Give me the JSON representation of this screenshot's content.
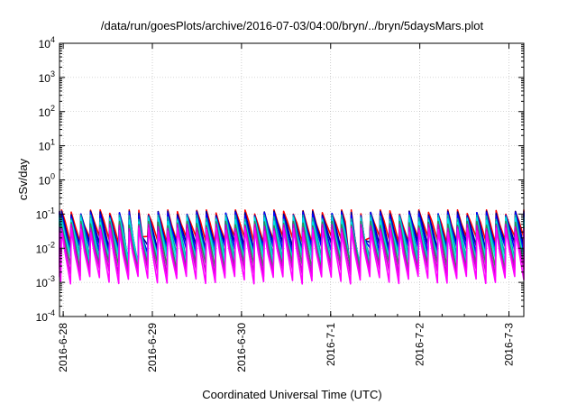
{
  "chart_data": {
    "type": "line",
    "title": "/data/run/goesPlots/archive/2016-07-03/04:00/bryn/../bryn/5daysMars.plot",
    "xlabel": "Coordinated Universal Time (UTC)",
    "ylabel": "cSv/day",
    "yscale": "log",
    "ylim": [
      0.0001,
      10000
    ],
    "xlim": [
      "2016-06-27 23:00",
      "2016-07-03 04:00"
    ],
    "grid": true,
    "legend": "none",
    "y_ticks": [
      {
        "base": "10",
        "exp": "-4",
        "value": 0.0001
      },
      {
        "base": "10",
        "exp": "-3",
        "value": 0.001
      },
      {
        "base": "10",
        "exp": "-2",
        "value": 0.01
      },
      {
        "base": "10",
        "exp": "-1",
        "value": 0.1
      },
      {
        "base": "10",
        "exp": "0",
        "value": 1
      },
      {
        "base": "10",
        "exp": "1",
        "value": 10
      },
      {
        "base": "10",
        "exp": "2",
        "value": 100
      },
      {
        "base": "10",
        "exp": "3",
        "value": 1000
      },
      {
        "base": "10",
        "exp": "4",
        "value": 10000
      }
    ],
    "x_ticks": [
      {
        "label": "2016-6-28",
        "value": "2016-06-28 00:00"
      },
      {
        "label": "2016-6-29",
        "value": "2016-06-29 00:00"
      },
      {
        "label": "2016-6-30",
        "value": "2016-06-30 00:00"
      },
      {
        "label": "2016-7-1",
        "value": "2016-07-01 00:00"
      },
      {
        "label": "2016-7-2",
        "value": "2016-07-02 00:00"
      },
      {
        "label": "2016-7-3",
        "value": "2016-07-03 00:00"
      }
    ],
    "pattern": {
      "period_hours": 2.6,
      "drop_hours": 0.2,
      "phase_hours_from_x_start": 0.35
    },
    "series": [
      {
        "color": "#ff0000",
        "peak": 0.12,
        "trough": 0.018
      },
      {
        "color": "#00008b",
        "peak": 0.11,
        "trough": 0.012
      },
      {
        "color": "#0000ff",
        "peak": 0.1,
        "trough": 0.009
      },
      {
        "color": "#00aaaa",
        "peak": 0.085,
        "trough": 0.006
      },
      {
        "color": "#00e5e5",
        "peak": 0.07,
        "trough": 0.0045
      },
      {
        "color": "#2e8b57",
        "peak": 0.055,
        "trough": 0.003
      },
      {
        "color": "#cc00cc",
        "peak": 0.045,
        "trough": 0.002
      },
      {
        "color": "#ff00ff",
        "peak": 0.035,
        "trough": 0.0012
      }
    ],
    "dips": [
      {
        "x": "2016-07-01 06:30",
        "floor": 0.002
      },
      {
        "x": "2016-06-28 19:30",
        "floor": 0.0025
      }
    ]
  }
}
